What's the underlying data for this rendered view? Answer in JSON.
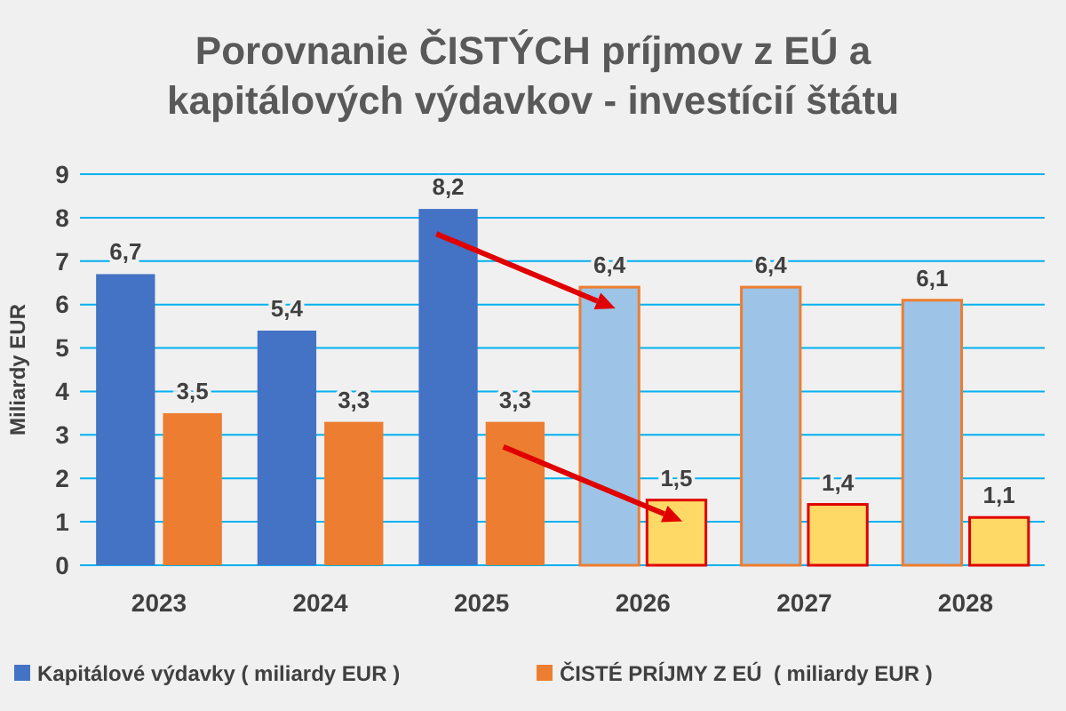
{
  "chart_data": {
    "type": "bar",
    "title": "Porovnanie ČISTÝCH príjmov z EÚ a kapitálových výdavkov - investícií štátu",
    "ylabel": "Miliardy EUR",
    "categories": [
      "2023",
      "2024",
      "2025",
      "2026",
      "2027",
      "2028"
    ],
    "series": [
      {
        "name": "Kapitálové výdavky ( miliardy EUR )",
        "color": "#4472c4",
        "colors": [
          "#4472c4",
          "#4472c4",
          "#4472c4",
          "#9dc3e6",
          "#9dc3e6",
          "#9dc3e6"
        ],
        "values": [
          6.7,
          5.4,
          8.2,
          6.4,
          6.4,
          6.1
        ],
        "value_labels": [
          "6,7",
          "5,4",
          "8,2",
          "6,4",
          "6,4",
          "6,1"
        ]
      },
      {
        "name": "ČISTÉ PRÍJMY Z EÚ  ( miliardy EUR )",
        "color": "#ed7d31",
        "colors": [
          "#ed7d31",
          "#ed7d31",
          "#ed7d31",
          "#ffd966",
          "#ffd966",
          "#ffd966"
        ],
        "values": [
          3.5,
          3.3,
          3.3,
          1.5,
          1.4,
          1.1
        ],
        "value_labels": [
          "3,5",
          "3,3",
          "3,3",
          "1,5",
          "1,4",
          "1,1"
        ]
      }
    ],
    "ylim": [
      0,
      9
    ],
    "yticks": [
      0,
      1,
      2,
      3,
      4,
      5,
      6,
      7,
      8,
      9
    ],
    "grid": "y",
    "legend": "bottom"
  }
}
